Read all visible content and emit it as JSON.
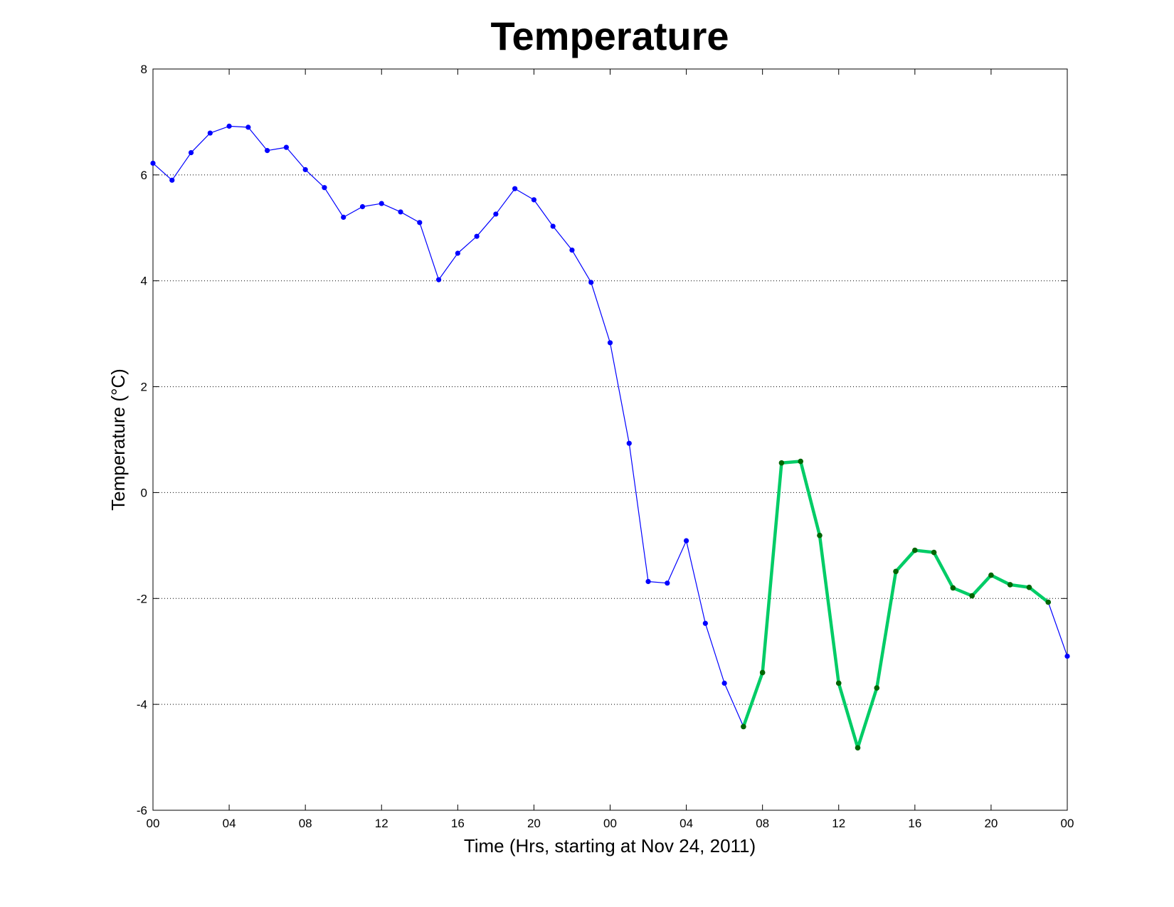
{
  "chart_data": {
    "type": "line",
    "title": "Temperature",
    "xlabel": "Time (Hrs, starting at Nov 24, 2011)",
    "ylabel": "Temperature (°C)",
    "ylim": [
      -6,
      8
    ],
    "xlim": [
      "2011-11-24 00:00",
      "2011-11-26 00:00"
    ],
    "y_ticks": [
      "-6",
      "-4",
      "-2",
      "0",
      "2",
      "4",
      "6",
      "8"
    ],
    "x_ticks": [
      {
        "x": "2011-11-24 00:00",
        "label": "00"
      },
      {
        "x": "2011-11-24 04:00",
        "label": "04"
      },
      {
        "x": "2011-11-24 08:00",
        "label": "08"
      },
      {
        "x": "2011-11-24 12:00",
        "label": "12"
      },
      {
        "x": "2011-11-24 16:00",
        "label": "16"
      },
      {
        "x": "2011-11-24 20:00",
        "label": "20"
      },
      {
        "x": "2011-11-25 00:00",
        "label": "00"
      },
      {
        "x": "2011-11-25 04:00",
        "label": "04"
      },
      {
        "x": "2011-11-25 08:00",
        "label": "08"
      },
      {
        "x": "2011-11-25 12:00",
        "label": "12"
      },
      {
        "x": "2011-11-25 16:00",
        "label": "16"
      },
      {
        "x": "2011-11-25 20:00",
        "label": "20"
      },
      {
        "x": "2011-11-26 00:00",
        "label": "00"
      }
    ],
    "grid": {
      "y": true,
      "x": false,
      "style": "dotted"
    },
    "series": [
      {
        "color": "#0000ff",
        "marker_color": "#0000ff",
        "x": [
          "2011-11-24 00:00",
          "2011-11-24 01:00",
          "2011-11-24 02:00",
          "2011-11-24 03:00",
          "2011-11-24 04:00",
          "2011-11-24 05:00",
          "2011-11-24 06:00",
          "2011-11-24 07:00",
          "2011-11-24 08:00",
          "2011-11-24 09:00",
          "2011-11-24 10:00",
          "2011-11-24 11:00",
          "2011-11-24 12:00",
          "2011-11-24 13:00",
          "2011-11-24 14:00",
          "2011-11-24 15:00",
          "2011-11-24 16:00",
          "2011-11-24 17:00",
          "2011-11-24 18:00",
          "2011-11-24 19:00",
          "2011-11-24 20:00",
          "2011-11-24 21:00",
          "2011-11-24 22:00",
          "2011-11-24 23:00",
          "2011-11-25 00:00",
          "2011-11-25 01:00",
          "2011-11-25 02:00",
          "2011-11-25 03:00",
          "2011-11-25 04:00",
          "2011-11-25 05:00",
          "2011-11-25 06:00",
          "2011-11-25 07:00",
          "2011-11-25 08:00",
          "2011-11-25 09:00",
          "2011-11-25 10:00",
          "2011-11-25 11:00",
          "2011-11-25 12:00",
          "2011-11-25 13:00",
          "2011-11-25 14:00",
          "2011-11-25 15:00",
          "2011-11-25 16:00",
          "2011-11-25 17:00",
          "2011-11-25 18:00",
          "2011-11-25 19:00",
          "2011-11-25 20:00",
          "2011-11-25 21:00",
          "2011-11-25 22:00",
          "2011-11-25 23:00",
          "2011-11-26 00:00"
        ],
        "values": [
          6.22,
          5.9,
          6.42,
          6.79,
          6.92,
          6.9,
          6.46,
          6.52,
          6.1,
          5.76,
          5.2,
          5.4,
          5.46,
          5.3,
          5.1,
          4.02,
          4.52,
          4.84,
          5.26,
          5.74,
          5.53,
          5.03,
          4.58,
          3.97,
          2.83,
          0.93,
          -1.68,
          -1.71,
          -0.91,
          -2.47,
          -3.6,
          -4.42,
          -3.4,
          0.56,
          0.59,
          -0.81,
          -3.6,
          -4.82,
          -3.69,
          -1.49,
          -1.09,
          -1.13,
          -1.8,
          -1.95,
          -1.56,
          -1.74,
          -1.79,
          -2.07,
          -3.09
        ]
      },
      {
        "color": "#00cc66",
        "marker_color": "#006600",
        "x": [
          "2011-11-25 07:00",
          "2011-11-25 08:00",
          "2011-11-25 09:00",
          "2011-11-25 10:00",
          "2011-11-25 11:00",
          "2011-11-25 12:00",
          "2011-11-25 13:00",
          "2011-11-25 14:00",
          "2011-11-25 15:00",
          "2011-11-25 16:00",
          "2011-11-25 17:00",
          "2011-11-25 18:00",
          "2011-11-25 19:00",
          "2011-11-25 20:00",
          "2011-11-25 21:00",
          "2011-11-25 22:00",
          "2011-11-25 23:00"
        ],
        "values": [
          -4.42,
          -3.4,
          0.56,
          0.59,
          -0.81,
          -3.6,
          -4.82,
          -3.69,
          -1.49,
          -1.09,
          -1.13,
          -1.8,
          -1.95,
          -1.56,
          -1.74,
          -1.79,
          -2.07
        ]
      }
    ]
  }
}
